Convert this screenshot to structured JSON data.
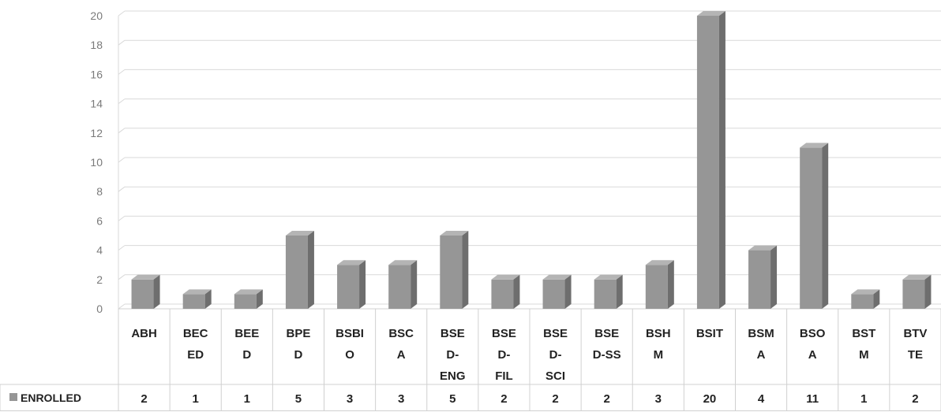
{
  "chart_data": {
    "type": "bar",
    "categories": [
      "ABH",
      "BECED",
      "BEED",
      "BPED",
      "BSBIO",
      "BSCA",
      "BSED-ENG",
      "BSED-FIL",
      "BSED-SCI",
      "BSED-SS",
      "BSHM",
      "BSIT",
      "BSMA",
      "BSOA",
      "BSTM",
      "BTVTE"
    ],
    "category_label_lines": [
      [
        "ABH"
      ],
      [
        "BEC",
        "ED"
      ],
      [
        "BEE",
        "D"
      ],
      [
        "BPE",
        "D"
      ],
      [
        "BSBI",
        "O"
      ],
      [
        "BSC",
        "A"
      ],
      [
        "BSE",
        "D-",
        "ENG"
      ],
      [
        "BSE",
        "D-",
        "FIL"
      ],
      [
        "BSE",
        "D-",
        "SCI"
      ],
      [
        "BSE",
        "D-SS"
      ],
      [
        "BSH",
        "M"
      ],
      [
        "BSIT"
      ],
      [
        "BSM",
        "A"
      ],
      [
        "BSO",
        "A"
      ],
      [
        "BST",
        "M"
      ],
      [
        "BTV",
        "TE"
      ]
    ],
    "series": [
      {
        "name": "ENROLLED",
        "values": [
          2,
          1,
          1,
          5,
          3,
          3,
          5,
          2,
          2,
          2,
          3,
          20,
          4,
          11,
          1,
          2
        ]
      }
    ],
    "ylim": [
      0,
      20
    ],
    "yticks": [
      "0",
      "2",
      "4",
      "6",
      "8",
      "10",
      "12",
      "14",
      "16",
      "18",
      "20"
    ],
    "grid": true,
    "data_table": true,
    "bar_color": "#969696",
    "bar_side_color": "#6e6e6e",
    "bar_top_color": "#b4b4b4"
  }
}
